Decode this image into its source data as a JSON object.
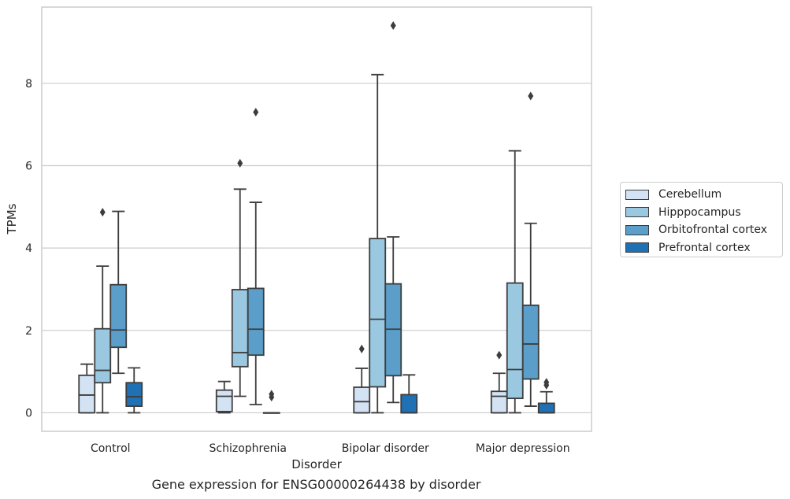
{
  "chart_data": {
    "type": "box",
    "caption": "Gene expression for ENSG00000264438 by disorder",
    "xlabel": "Disorder",
    "ylabel": "TPMs",
    "ylim": [
      -0.45,
      9.85
    ],
    "yticks": [
      "0",
      "2",
      "4",
      "6",
      "8"
    ],
    "ytick_values": [
      0,
      2,
      4,
      6,
      8
    ],
    "grid": "horizontal",
    "legend_position": "right",
    "categories": [
      "Control",
      "Schizophrenia",
      "Bipolar disorder",
      "Major depression"
    ],
    "series": [
      {
        "name": "Cerebellum",
        "color": "#d3e3f3",
        "boxes": [
          {
            "whislo": 0,
            "q1": 0,
            "med": 0.43,
            "q3": 0.91,
            "whishi": 1.18,
            "fliers": []
          },
          {
            "whislo": 0,
            "q1": 0.03,
            "med": 0.4,
            "q3": 0.55,
            "whishi": 0.76,
            "fliers": []
          },
          {
            "whislo": 0,
            "q1": 0,
            "med": 0.27,
            "q3": 0.62,
            "whishi": 1.08,
            "fliers": [
              1.55
            ]
          },
          {
            "whislo": 0,
            "q1": 0,
            "med": 0.4,
            "q3": 0.52,
            "whishi": 0.96,
            "fliers": [
              1.4
            ]
          }
        ]
      },
      {
        "name": "Hipppocampus",
        "color": "#9ac8e0",
        "boxes": [
          {
            "whislo": 0,
            "q1": 0.73,
            "med": 1.03,
            "q3": 2.04,
            "whishi": 3.56,
            "fliers": [
              4.87
            ]
          },
          {
            "whislo": 0.4,
            "q1": 1.12,
            "med": 1.46,
            "q3": 2.99,
            "whishi": 5.43,
            "fliers": [
              6.06
            ]
          },
          {
            "whislo": 0,
            "q1": 0.63,
            "med": 2.27,
            "q3": 4.23,
            "whishi": 8.21,
            "fliers": []
          },
          {
            "whislo": 0,
            "q1": 0.35,
            "med": 1.05,
            "q3": 3.15,
            "whishi": 6.36,
            "fliers": []
          }
        ]
      },
      {
        "name": "Orbitofrontal cortex",
        "color": "#5a9ec9",
        "boxes": [
          {
            "whislo": 0.96,
            "q1": 1.59,
            "med": 2.01,
            "q3": 3.11,
            "whishi": 4.89,
            "fliers": []
          },
          {
            "whislo": 0.2,
            "q1": 1.4,
            "med": 2.03,
            "q3": 3.02,
            "whishi": 5.11,
            "fliers": [
              7.3
            ]
          },
          {
            "whislo": 0.25,
            "q1": 0.9,
            "med": 2.03,
            "q3": 3.13,
            "whishi": 4.27,
            "fliers": [
              9.4
            ]
          },
          {
            "whislo": 0.16,
            "q1": 0.82,
            "med": 1.67,
            "q3": 2.61,
            "whishi": 4.6,
            "fliers": [
              7.69
            ]
          }
        ]
      },
      {
        "name": "Prefrontal cortex",
        "color": "#2070b4",
        "boxes": [
          {
            "whislo": 0,
            "q1": 0.16,
            "med": 0.39,
            "q3": 0.73,
            "whishi": 1.09,
            "fliers": []
          },
          {
            "whislo": 0,
            "q1": 0,
            "med": 0,
            "q3": 0,
            "whishi": 0,
            "fliers": [
              0.38,
              0.45
            ]
          },
          {
            "whislo": 0,
            "q1": 0,
            "med": 0,
            "q3": 0.44,
            "whishi": 0.92,
            "fliers": []
          },
          {
            "whislo": 0,
            "q1": 0,
            "med": 0,
            "q3": 0.23,
            "whishi": 0.51,
            "fliers": [
              0.67,
              0.74
            ]
          }
        ]
      }
    ]
  }
}
